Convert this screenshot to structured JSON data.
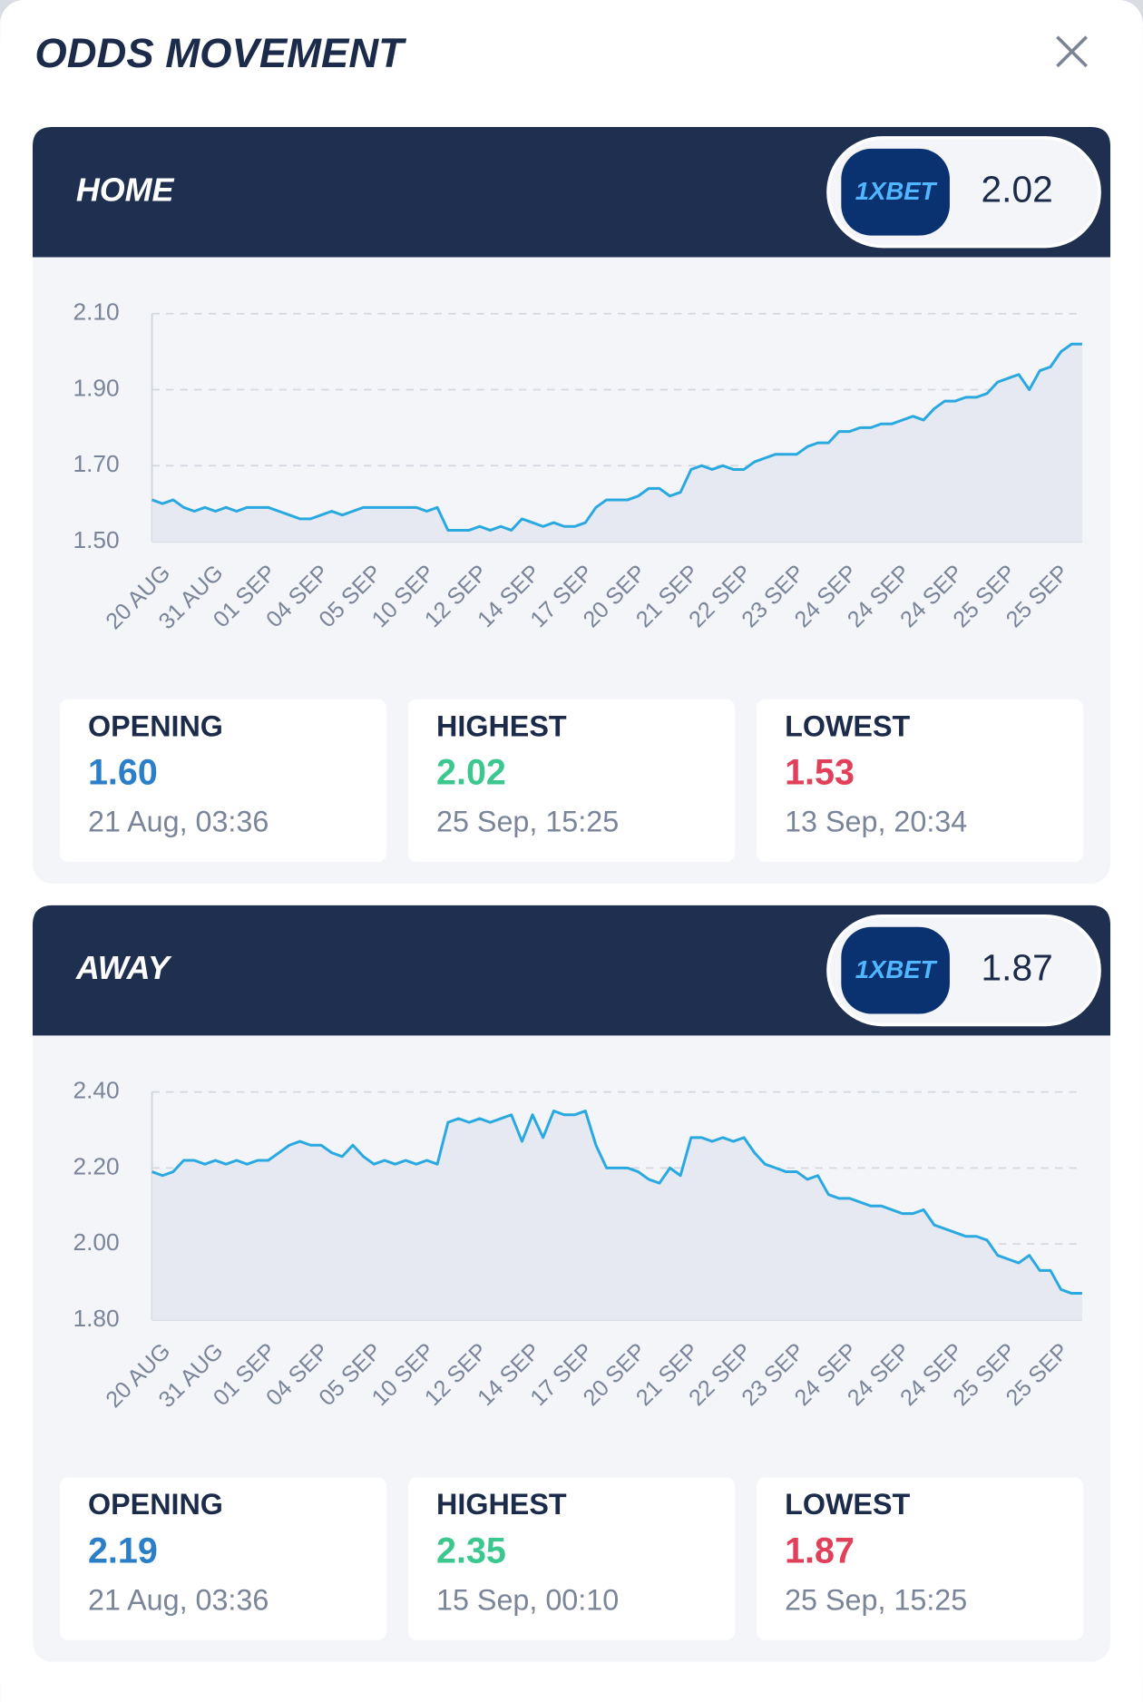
{
  "title": "ODDS MOVEMENT",
  "panels": [
    {
      "label": "HOME",
      "bookmaker": "1XBET",
      "odds": "2.02",
      "stats": [
        {
          "name": "OPENING",
          "value": "1.60",
          "time": "21 Aug, 03:36"
        },
        {
          "name": "HIGHEST",
          "value": "2.02",
          "time": "25 Sep, 15:25"
        },
        {
          "name": "LOWEST",
          "value": "1.53",
          "time": "13 Sep, 20:34"
        }
      ]
    },
    {
      "label": "AWAY",
      "bookmaker": "1XBET",
      "odds": "1.87",
      "stats": [
        {
          "name": "OPENING",
          "value": "2.19",
          "time": "21 Aug, 03:36"
        },
        {
          "name": "HIGHEST",
          "value": "2.35",
          "time": "15 Sep, 00:10"
        },
        {
          "name": "LOWEST",
          "value": "1.87",
          "time": "25 Sep, 15:25"
        }
      ]
    }
  ],
  "chart_data": [
    {
      "type": "line",
      "color": "#2aa9e0",
      "area_color": "#e6e9f2",
      "grid": true,
      "categories": [
        "20 AUG",
        null,
        null,
        null,
        null,
        "31 AUG",
        null,
        null,
        null,
        null,
        "01 SEP",
        null,
        null,
        null,
        null,
        "04 SEP",
        null,
        null,
        null,
        null,
        "05 SEP",
        null,
        null,
        null,
        null,
        "10 SEP",
        null,
        null,
        null,
        null,
        "12 SEP",
        null,
        null,
        null,
        null,
        "14 SEP",
        null,
        null,
        null,
        null,
        "17 SEP",
        null,
        null,
        null,
        null,
        "20 SEP",
        null,
        null,
        null,
        null,
        "21 SEP",
        null,
        null,
        null,
        null,
        "22 SEP",
        null,
        null,
        null,
        null,
        "23 SEP",
        null,
        null,
        null,
        null,
        "24 SEP",
        null,
        null,
        null,
        null,
        "24 SEP",
        null,
        null,
        null,
        null,
        "24 SEP",
        null,
        null,
        null,
        null,
        "25 SEP",
        null,
        null,
        null,
        null,
        "25 SEP",
        null,
        null,
        null
      ],
      "values": [
        1.61,
        1.6,
        1.61,
        1.59,
        1.58,
        1.59,
        1.58,
        1.59,
        1.58,
        1.59,
        1.59,
        1.59,
        1.58,
        1.57,
        1.56,
        1.56,
        1.57,
        1.58,
        1.57,
        1.58,
        1.59,
        1.59,
        1.59,
        1.59,
        1.59,
        1.59,
        1.58,
        1.59,
        1.53,
        1.53,
        1.53,
        1.54,
        1.53,
        1.54,
        1.53,
        1.56,
        1.55,
        1.54,
        1.55,
        1.54,
        1.54,
        1.55,
        1.59,
        1.61,
        1.61,
        1.61,
        1.62,
        1.64,
        1.64,
        1.62,
        1.63,
        1.69,
        1.7,
        1.69,
        1.7,
        1.69,
        1.69,
        1.71,
        1.72,
        1.73,
        1.73,
        1.73,
        1.75,
        1.76,
        1.76,
        1.79,
        1.79,
        1.8,
        1.8,
        1.81,
        1.81,
        1.82,
        1.83,
        1.82,
        1.85,
        1.87,
        1.87,
        1.88,
        1.88,
        1.89,
        1.92,
        1.93,
        1.94,
        1.9,
        1.95,
        1.96,
        2.0,
        2.02,
        2.02
      ],
      "ylim": [
        1.5,
        2.1
      ],
      "yticks": [
        {
          "value": 1.5,
          "label": "1.50"
        },
        {
          "value": 1.7,
          "label": "1.70"
        },
        {
          "value": 1.9,
          "label": "1.90"
        },
        {
          "value": 2.1,
          "label": "2.10"
        }
      ]
    },
    {
      "type": "line",
      "color": "#2aa9e0",
      "area_color": "#e6e9f2",
      "grid": true,
      "categories": [
        "20 AUG",
        null,
        null,
        null,
        null,
        "31 AUG",
        null,
        null,
        null,
        null,
        "01 SEP",
        null,
        null,
        null,
        null,
        "04 SEP",
        null,
        null,
        null,
        null,
        "05 SEP",
        null,
        null,
        null,
        null,
        "10 SEP",
        null,
        null,
        null,
        null,
        "12 SEP",
        null,
        null,
        null,
        null,
        "14 SEP",
        null,
        null,
        null,
        null,
        "17 SEP",
        null,
        null,
        null,
        null,
        "20 SEP",
        null,
        null,
        null,
        null,
        "21 SEP",
        null,
        null,
        null,
        null,
        "22 SEP",
        null,
        null,
        null,
        null,
        "23 SEP",
        null,
        null,
        null,
        null,
        "24 SEP",
        null,
        null,
        null,
        null,
        "24 SEP",
        null,
        null,
        null,
        null,
        "24 SEP",
        null,
        null,
        null,
        null,
        "25 SEP",
        null,
        null,
        null,
        null,
        "25 SEP",
        null,
        null,
        null
      ],
      "values": [
        2.19,
        2.18,
        2.19,
        2.22,
        2.22,
        2.21,
        2.22,
        2.21,
        2.22,
        2.21,
        2.22,
        2.22,
        2.24,
        2.26,
        2.27,
        2.26,
        2.26,
        2.24,
        2.23,
        2.26,
        2.23,
        2.21,
        2.22,
        2.21,
        2.22,
        2.21,
        2.22,
        2.21,
        2.32,
        2.33,
        2.32,
        2.33,
        2.32,
        2.33,
        2.34,
        2.27,
        2.34,
        2.28,
        2.35,
        2.34,
        2.34,
        2.35,
        2.26,
        2.2,
        2.2,
        2.2,
        2.19,
        2.17,
        2.16,
        2.2,
        2.18,
        2.28,
        2.28,
        2.27,
        2.28,
        2.27,
        2.28,
        2.24,
        2.21,
        2.2,
        2.19,
        2.19,
        2.17,
        2.18,
        2.13,
        2.12,
        2.12,
        2.11,
        2.1,
        2.1,
        2.09,
        2.08,
        2.08,
        2.09,
        2.05,
        2.04,
        2.03,
        2.02,
        2.02,
        2.01,
        1.97,
        1.96,
        1.95,
        1.97,
        1.93,
        1.93,
        1.88,
        1.87,
        1.87
      ],
      "ylim": [
        1.8,
        2.4
      ],
      "yticks": [
        {
          "value": 1.8,
          "label": "1.80"
        },
        {
          "value": 2.0,
          "label": "2.00"
        },
        {
          "value": 2.2,
          "label": "2.20"
        },
        {
          "value": 2.4,
          "label": "2.40"
        }
      ]
    }
  ]
}
